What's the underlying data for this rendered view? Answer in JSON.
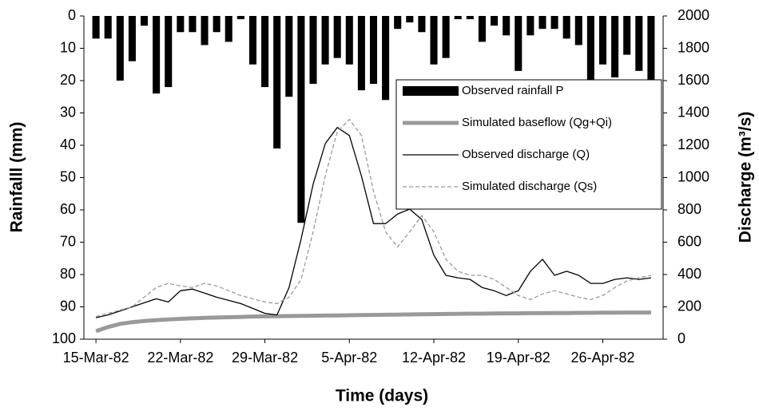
{
  "chart_data": {
    "type": "combo",
    "x_label": "Time (days)",
    "y_label": "Rainfalll (mm)",
    "y2_label": "Discharge (m³/s)",
    "xlim": [
      "1982-03-14",
      "1982-05-01"
    ],
    "xticks": [
      {
        "value": "1982-03-15",
        "label": "15-Mar-82"
      },
      {
        "value": "1982-03-22",
        "label": "22-Mar-82"
      },
      {
        "value": "1982-03-29",
        "label": "29-Mar-82"
      },
      {
        "value": "1982-04-05",
        "label": "5-Apr-82"
      },
      {
        "value": "1982-04-12",
        "label": "12-Apr-82"
      },
      {
        "value": "1982-04-19",
        "label": "19-Apr-82"
      },
      {
        "value": "1982-04-26",
        "label": "26-Apr-82"
      }
    ],
    "ylim": [
      100,
      0
    ],
    "yticks": [
      0,
      10,
      20,
      30,
      40,
      50,
      60,
      70,
      80,
      90,
      100
    ],
    "y2lim": [
      0,
      2000
    ],
    "y2ticks": [
      0,
      200,
      400,
      600,
      800,
      1000,
      1200,
      1400,
      1600,
      1800,
      2000
    ],
    "x": [
      "1982-03-15",
      "1982-03-16",
      "1982-03-17",
      "1982-03-18",
      "1982-03-19",
      "1982-03-20",
      "1982-03-21",
      "1982-03-22",
      "1982-03-23",
      "1982-03-24",
      "1982-03-25",
      "1982-03-26",
      "1982-03-27",
      "1982-03-28",
      "1982-03-29",
      "1982-03-30",
      "1982-03-31",
      "1982-04-01",
      "1982-04-02",
      "1982-04-03",
      "1982-04-04",
      "1982-04-05",
      "1982-04-06",
      "1982-04-07",
      "1982-04-08",
      "1982-04-09",
      "1982-04-10",
      "1982-04-11",
      "1982-04-12",
      "1982-04-13",
      "1982-04-14",
      "1982-04-15",
      "1982-04-16",
      "1982-04-17",
      "1982-04-18",
      "1982-04-19",
      "1982-04-20",
      "1982-04-21",
      "1982-04-22",
      "1982-04-23",
      "1982-04-24",
      "1982-04-25",
      "1982-04-26",
      "1982-04-27",
      "1982-04-28",
      "1982-04-29",
      "1982-04-30"
    ],
    "series": [
      {
        "name": "Observed rainfall P",
        "type": "bar",
        "color": "#000000",
        "axis": "y",
        "values": [
          7,
          7,
          20,
          14,
          3,
          24,
          22,
          5,
          5,
          9,
          5,
          8,
          1,
          15,
          22,
          41,
          25,
          64,
          21,
          15,
          13,
          15,
          23,
          21,
          26,
          4,
          2,
          5,
          15,
          13,
          1,
          1,
          8,
          3,
          6,
          17,
          6,
          4,
          4,
          7,
          9,
          22,
          15,
          19,
          12,
          17,
          27
        ]
      },
      {
        "name": "Simulated baseflow (Qg+Qi)",
        "type": "line",
        "color": "#999999",
        "width": 5,
        "axis": "y2",
        "values": [
          50,
          75,
          95,
          105,
          112,
          118,
          122,
          126,
          129,
          132,
          134,
          136,
          138,
          140,
          141,
          142,
          143,
          144,
          145,
          146,
          147,
          148,
          149,
          150,
          151,
          152,
          153,
          154,
          155,
          156,
          157,
          158,
          158,
          159,
          160,
          160,
          161,
          161,
          162,
          162,
          163,
          163,
          164,
          164,
          165,
          165,
          165
        ]
      },
      {
        "name": "Observed discharge (Q)",
        "type": "line",
        "color": "#000000",
        "width": 1.3,
        "axis": "y2",
        "values": [
          133,
          150,
          175,
          200,
          225,
          250,
          230,
          300,
          310,
          285,
          260,
          240,
          220,
          190,
          160,
          150,
          320,
          620,
          960,
          1210,
          1310,
          1260,
          1010,
          715,
          715,
          775,
          805,
          740,
          520,
          395,
          380,
          370,
          320,
          300,
          270,
          300,
          420,
          495,
          395,
          420,
          395,
          345,
          345,
          370,
          380,
          370,
          380
        ]
      },
      {
        "name": "Simulated discharge (Qs)",
        "type": "line",
        "color": "#999999",
        "width": 1.3,
        "dashed": true,
        "axis": "y2",
        "values": [
          140,
          160,
          180,
          200,
          260,
          320,
          345,
          330,
          320,
          345,
          330,
          300,
          270,
          250,
          230,
          220,
          260,
          370,
          665,
          1010,
          1285,
          1360,
          1260,
          915,
          665,
          570,
          665,
          765,
          665,
          495,
          420,
          395,
          395,
          370,
          320,
          270,
          245,
          280,
          300,
          280,
          260,
          245,
          270,
          320,
          360,
          380,
          395
        ]
      }
    ]
  }
}
